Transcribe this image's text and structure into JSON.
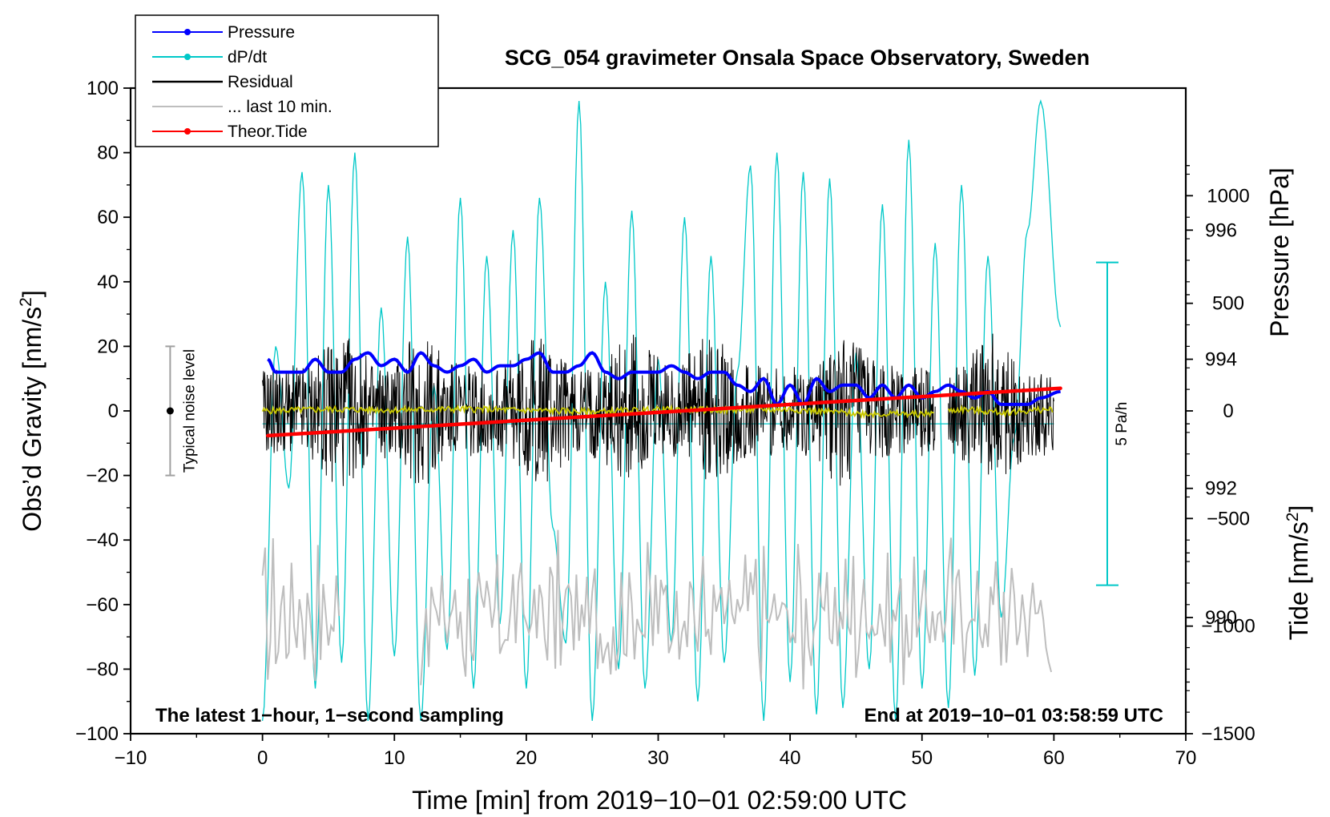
{
  "chart_data": {
    "type": "line",
    "title": "SCG_054 gravimeter Onsala Space Observatory, Sweden",
    "xlabel": "Time [min] from 2019−10−01 02:59:00 UTC",
    "ylabel": "Obs’d Gravity [nm/s",
    "ylabel_sup": "2",
    "ylabel_end": "]",
    "y2label_pressure": "Pressure [hPa]",
    "y2label_tide": "Tide [nm/s",
    "y2label_tide_sup": "2",
    "y2label_tide_end": "]",
    "xlim": [
      -10,
      70
    ],
    "ylim": [
      -100,
      100
    ],
    "pressure_lim": [
      988.2,
      998.2
    ],
    "tide_lim": [
      -1500,
      1500
    ],
    "x_ticks": [
      -10,
      0,
      10,
      20,
      30,
      40,
      50,
      60,
      70
    ],
    "x_tick_labels": [
      "−10",
      "0",
      "10",
      "20",
      "30",
      "40",
      "50",
      "60",
      "70"
    ],
    "y_ticks": [
      -100,
      -80,
      -60,
      -40,
      -20,
      0,
      20,
      40,
      60,
      80,
      100
    ],
    "y_tick_labels": [
      "−100",
      "−80",
      "−60",
      "−40",
      "−20",
      "0",
      "20",
      "40",
      "60",
      "80",
      "100"
    ],
    "pressure_ticks": [
      990,
      992,
      994,
      996
    ],
    "pressure_tick_labels": [
      "990",
      "992",
      "994",
      "996"
    ],
    "tide_ticks": [
      -1500,
      -1000,
      -500,
      0,
      500,
      1000
    ],
    "tide_tick_labels": [
      "−1500",
      "−1000",
      "−500",
      "0",
      "500",
      "1000"
    ],
    "legend": {
      "position": "top-left",
      "entries": [
        {
          "label": "Pressure",
          "color": "#0000ff",
          "marker": "dot"
        },
        {
          "label": "dP/dt",
          "color": "#00c8c8",
          "marker": "dot"
        },
        {
          "label": "Residual",
          "color": "#000000",
          "marker": "none"
        },
        {
          "label": "... last 10 min.",
          "color": "#bebebe",
          "marker": "none"
        },
        {
          "label": "Theor.Tide",
          "color": "#ff0000",
          "marker": "dot"
        }
      ]
    },
    "annotations": {
      "left": "The latest 1−hour, 1−second sampling",
      "right": "End at 2019−10−01 03:58:59 UTC",
      "noise_label": "Typical noise level",
      "noise_range": [
        -20,
        20
      ],
      "noise_x": -7,
      "rate_scale_label": "5 Pa/h"
    },
    "series": [
      {
        "name": "Pressure",
        "unit": "hPa",
        "color": "#0000ff",
        "x": [
          0.4,
          1,
          2,
          3,
          4,
          5,
          6,
          7,
          8,
          9,
          10,
          11,
          12,
          13,
          14,
          15,
          16,
          17,
          18,
          19,
          20,
          21,
          22,
          23,
          24,
          25,
          26,
          27,
          28,
          29,
          30,
          31,
          32,
          33,
          34,
          35,
          36,
          37,
          38,
          39,
          40,
          41,
          42,
          43,
          44,
          45,
          46,
          47,
          48,
          49,
          50,
          51,
          52,
          53,
          54,
          55,
          56,
          57,
          58,
          59,
          60.5
        ],
        "values": [
          994.0,
          993.8,
          993.8,
          993.8,
          994.0,
          993.8,
          993.8,
          994.0,
          994.1,
          993.9,
          994.0,
          993.8,
          994.1,
          993.9,
          993.8,
          993.9,
          994.0,
          993.8,
          993.9,
          993.9,
          994.0,
          994.1,
          993.8,
          993.8,
          993.9,
          994.1,
          993.8,
          993.7,
          993.8,
          993.8,
          993.8,
          993.9,
          993.8,
          993.7,
          993.8,
          993.8,
          993.6,
          993.5,
          993.7,
          993.3,
          993.6,
          993.3,
          993.7,
          993.5,
          993.6,
          993.6,
          993.4,
          993.6,
          993.4,
          993.6,
          993.4,
          993.5,
          993.6,
          993.5,
          993.4,
          993.5,
          993.3,
          993.3,
          993.3,
          993.4,
          993.5
        ]
      },
      {
        "name": "dP/dt",
        "unit": "Pa/h",
        "color": "#00c8c8",
        "baseline_pressure_equiv": 993.0,
        "scale_pressure_per_5Pa_h": 5,
        "x": [
          0,
          1,
          2,
          3,
          4,
          5,
          6,
          7,
          8,
          9,
          10,
          11,
          12,
          13,
          14,
          15,
          16,
          17,
          18,
          19,
          20,
          21,
          22,
          23,
          24,
          25,
          26,
          27,
          28,
          29,
          30,
          31,
          32,
          33,
          34,
          35,
          36,
          37,
          38,
          39,
          40,
          41,
          42,
          43,
          44,
          45,
          46,
          47,
          48,
          49,
          50,
          51,
          52,
          53,
          54,
          55,
          56,
          57,
          58,
          59,
          60.5
        ],
        "values": [
          988.4,
          994.2,
          992.0,
          996.9,
          988.9,
          996.7,
          989.3,
          997.2,
          988.4,
          994.8,
          989.4,
          995.9,
          988.4,
          993.6,
          989.5,
          996.5,
          988.9,
          995.6,
          989.9,
          996.0,
          988.9,
          996.5,
          991.4,
          989.6,
          998.0,
          988.4,
          995.2,
          989.2,
          996.3,
          988.9,
          994.0,
          989.6,
          996.2,
          988.7,
          995.6,
          989.3,
          993.8,
          997.0,
          988.4,
          997.2,
          989.0,
          996.9,
          988.5,
          996.8,
          988.6,
          994.1,
          989.2,
          996.4,
          988.4,
          997.4,
          988.9,
          995.8,
          988.6,
          996.7,
          989.1,
          995.6,
          990.0,
          992.8,
          996.0,
          998.0,
          994.5
        ]
      },
      {
        "name": "Residual",
        "unit": "nm/s2",
        "color": "#000000",
        "x_start": 0,
        "x_end": 60,
        "gap": [
          51,
          52
        ],
        "envelope_peaks": [
          {
            "x": 6,
            "max": 38,
            "min": -36
          },
          {
            "x": 12,
            "max": 30,
            "min": -25
          },
          {
            "x": 21,
            "max": 32,
            "min": -28
          },
          {
            "x": 28,
            "max": 33,
            "min": -30
          },
          {
            "x": 34,
            "max": 30,
            "min": -30
          },
          {
            "x": 44,
            "max": 28,
            "min": -28
          },
          {
            "x": 55.5,
            "max": 33,
            "min": -39
          }
        ]
      },
      {
        "name": "Residual smoothed",
        "unit": "nm/s2",
        "color": "#c8c800",
        "x": [
          0,
          5,
          10,
          15,
          20,
          25,
          30,
          35,
          40,
          45,
          50,
          53,
          56,
          60
        ],
        "values": [
          0,
          0.5,
          0.3,
          0.6,
          0.2,
          -0.3,
          0.4,
          0.3,
          0.5,
          -0.8,
          -1.0,
          0.5,
          -0.5,
          0.5
        ]
      },
      {
        "name": "... last 10 min.",
        "unit": "nm/s2",
        "color": "#bebebe",
        "segments": [
          [
            0,
            6
          ],
          [
            12,
            60
          ]
        ],
        "y_range": [
          -100,
          -33
        ]
      },
      {
        "name": "Theor.Tide",
        "unit": "nm/s2",
        "color": "#ff0000",
        "x": [
          0.4,
          60.5
        ],
        "values": [
          -115,
          105
        ]
      }
    ]
  }
}
